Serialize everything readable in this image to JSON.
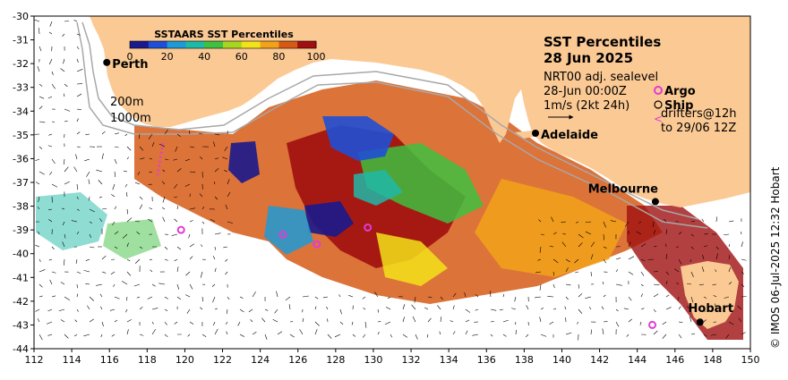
{
  "map": {
    "title_line1": "SST Percentiles",
    "title_line2": "28 Jun 2025",
    "product": "NRT00 adj. sealevel",
    "time": "28-Jun 00:00Z",
    "current_scale": "1m/s (2kt 24h)",
    "legend_argo": "Argo",
    "legend_ship": "Ship",
    "legend_drifters_line1": "drifters@12h",
    "legend_drifters_line2": "to 29/06 12Z",
    "depth_200": "200m",
    "depth_1000": "1000m",
    "credit": "© IMOS 06-Jul-2025 12:32 Hobart",
    "extent": {
      "lon": [
        112,
        150
      ],
      "lat": [
        -44,
        -30
      ]
    }
  },
  "axes": {
    "lon_ticks": [
      "112",
      "114",
      "116",
      "118",
      "120",
      "122",
      "124",
      "126",
      "128",
      "130",
      "132",
      "134",
      "136",
      "138",
      "140",
      "142",
      "144",
      "146",
      "148",
      "150"
    ],
    "lat_ticks": [
      "-30",
      "-31",
      "-32",
      "-33",
      "-34",
      "-35",
      "-36",
      "-37",
      "-38",
      "-39",
      "-40",
      "-41",
      "-42",
      "-43",
      "-44"
    ]
  },
  "colorbar": {
    "title": "SSTAARS SST Percentiles",
    "tick_labels": [
      "0",
      "20",
      "40",
      "60",
      "80",
      "100"
    ],
    "colors": [
      "#1a1a8c",
      "#1f4fd6",
      "#1f9ad6",
      "#1fb9a8",
      "#3fc040",
      "#a8d620",
      "#f2e21a",
      "#f2a21a",
      "#d65a16",
      "#a01010"
    ]
  },
  "cities": [
    {
      "name": "Perth",
      "lon": 115.86,
      "lat": -31.95
    },
    {
      "name": "Adelaide",
      "lon": 138.6,
      "lat": -34.93
    },
    {
      "name": "Melbourne",
      "lon": 144.96,
      "lat": -37.81
    },
    {
      "name": "Hobart",
      "lon": 147.33,
      "lat": -42.88
    }
  ],
  "argo_floats": [
    {
      "lon": 119.8,
      "lat": -39.0
    },
    {
      "lon": 125.2,
      "lat": -39.2
    },
    {
      "lon": 127.0,
      "lat": -39.6
    },
    {
      "lon": 129.7,
      "lat": -38.9
    },
    {
      "lon": 144.8,
      "lat": -43.0
    }
  ],
  "colors": {
    "land": "#fbc994",
    "ocean": "#ffffff",
    "argo": "#e03cd6"
  }
}
